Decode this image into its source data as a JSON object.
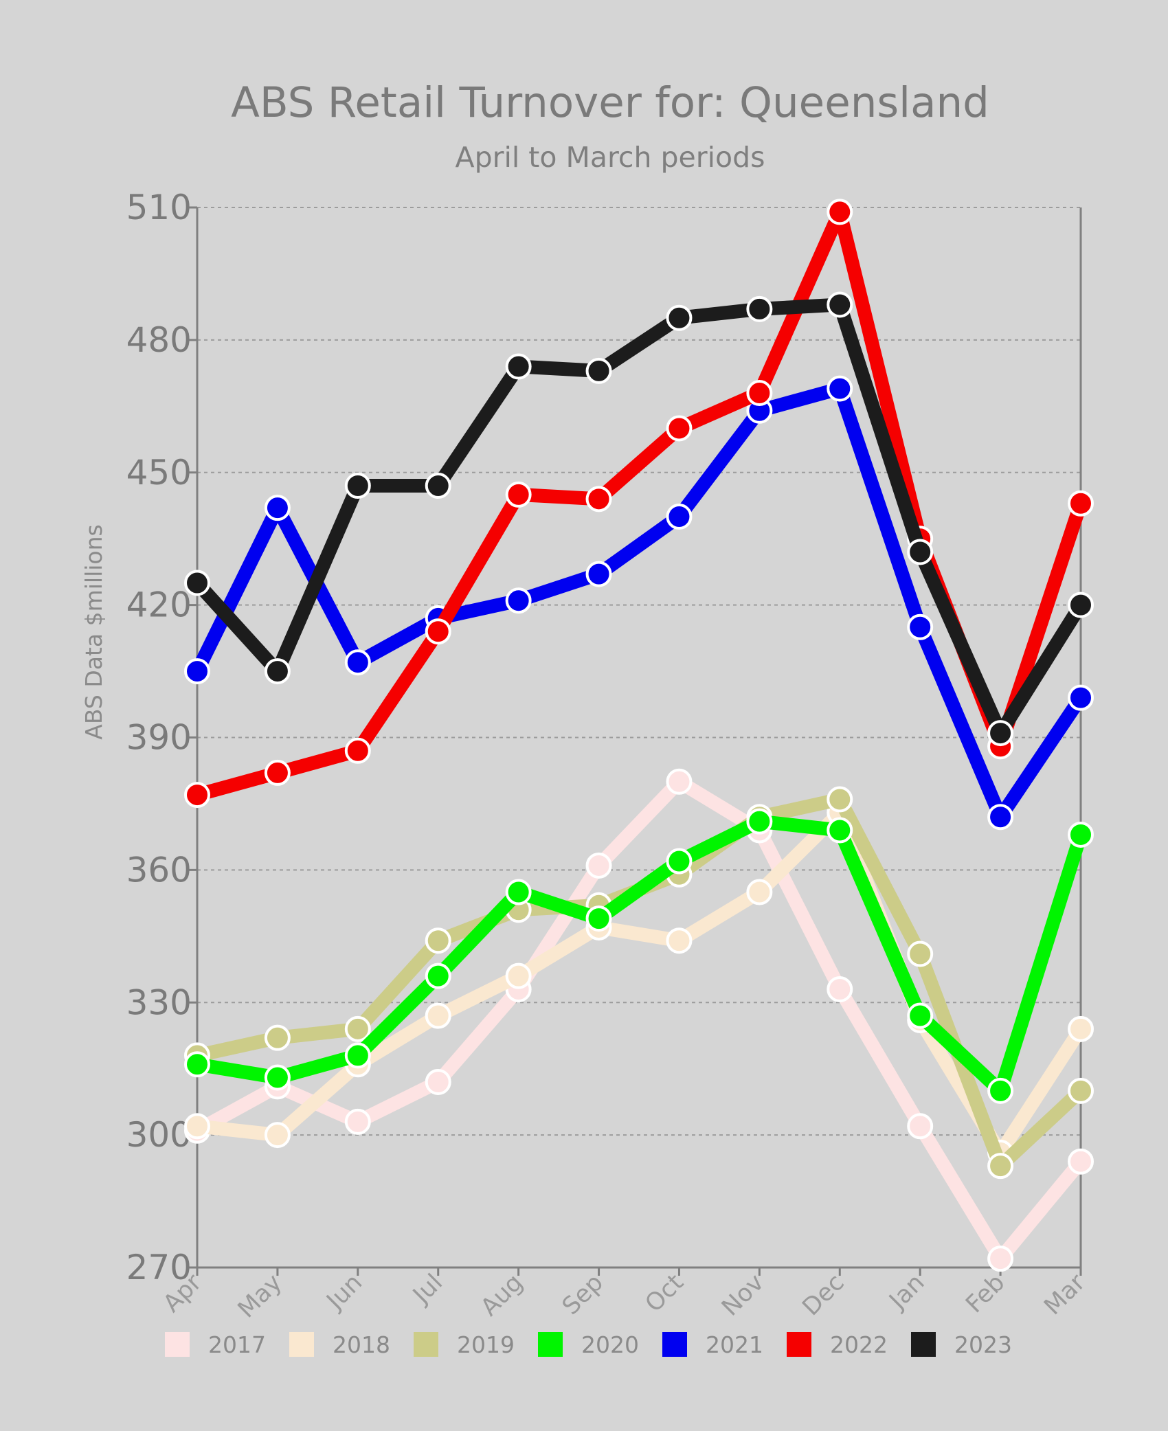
{
  "chart_data": {
    "type": "line",
    "title": "ABS Retail Turnover for: Queensland",
    "subtitle": "April to March periods",
    "ylabel": "ABS Data $millions",
    "xlabel": "",
    "categories": [
      "Apr",
      "May",
      "Jun",
      "Jul",
      "Aug",
      "Sep",
      "Oct",
      "Nov",
      "Dec",
      "Jan",
      "Feb",
      "Mar"
    ],
    "ylim": [
      270,
      510
    ],
    "yticks": [
      270,
      300,
      330,
      360,
      390,
      420,
      450,
      480,
      510
    ],
    "grid": true,
    "legend_position": "bottom",
    "series": [
      {
        "name": "2017",
        "color": "#fde3e3",
        "values": [
          301,
          311,
          303,
          312,
          333,
          361,
          380,
          369,
          333,
          302,
          272,
          294
        ]
      },
      {
        "name": "2018",
        "color": "#fae8d0",
        "values": [
          302,
          300,
          316,
          327,
          336,
          347,
          344,
          355,
          373,
          326,
          296,
          324
        ]
      },
      {
        "name": "2019",
        "color": "#cccc88",
        "values": [
          318,
          322,
          324,
          344,
          351,
          352,
          359,
          372,
          376,
          341,
          293,
          310
        ]
      },
      {
        "name": "2020",
        "color": "#00f500",
        "values": [
          316,
          313,
          318,
          336,
          355,
          349,
          362,
          371,
          369,
          327,
          310,
          368
        ]
      },
      {
        "name": "2021",
        "color": "#0000f0",
        "values": [
          405,
          442,
          407,
          417,
          421,
          427,
          440,
          464,
          469,
          415,
          372,
          399
        ]
      },
      {
        "name": "2022",
        "color": "#f50000",
        "values": [
          377,
          382,
          387,
          414,
          445,
          444,
          460,
          468,
          509,
          435,
          388,
          443
        ]
      },
      {
        "name": "2023",
        "color": "#1c1c1c",
        "values": [
          425,
          405,
          447,
          447,
          474,
          473,
          485,
          487,
          488,
          432,
          391,
          420
        ]
      }
    ]
  }
}
